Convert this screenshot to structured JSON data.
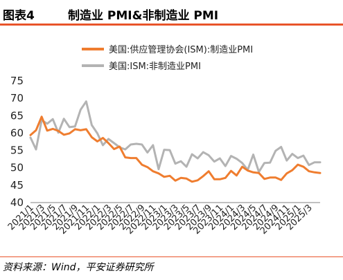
{
  "figure": {
    "label": "图表4",
    "title": "制造业 PMI&非制造业 PMI",
    "source": "资料来源：Wind，平安证券研究所",
    "accent_color": "#e8542a"
  },
  "chart_data": {
    "type": "line",
    "title": "制造业 PMI&非制造业 PMI",
    "xlabel": "",
    "ylabel": "",
    "ylim": [
      40,
      75
    ],
    "yticks": [
      40,
      45,
      50,
      55,
      60,
      65,
      70,
      75
    ],
    "grid": false,
    "legend_position": "top-right",
    "x": [
      "2021/1",
      "2021/2",
      "2021/3",
      "2021/4",
      "2021/5",
      "2021/6",
      "2021/7",
      "2021/8",
      "2021/9",
      "2021/10",
      "2021/11",
      "2021/12",
      "2022/1",
      "2022/2",
      "2022/3",
      "2022/4",
      "2022/5",
      "2022/6",
      "2022/7",
      "2022/8",
      "2022/9",
      "2022/10",
      "2022/11",
      "2022/12",
      "2023/1",
      "2023/2",
      "2023/3",
      "2023/4",
      "2023/5",
      "2023/6",
      "2023/7",
      "2023/8",
      "2023/9",
      "2023/10",
      "2023/11",
      "2023/12",
      "2024/1",
      "2024/2",
      "2024/3",
      "2024/4",
      "2024/5",
      "2024/6",
      "2024/7",
      "2024/8",
      "2024/9",
      "2024/10",
      "2024/11",
      "2024/12",
      "2025/1",
      "2025/2",
      "2025/3",
      "2025/4",
      "2025/5"
    ],
    "xtick_labels": [
      "2021/1",
      "2021/3",
      "2021/5",
      "2021/7",
      "2021/9",
      "2021/11",
      "2022/1",
      "2022/3",
      "2022/5",
      "2022/7",
      "2022/9",
      "2022/11",
      "2023/1",
      "2023/3",
      "2023/5",
      "2023/7",
      "2023/9",
      "2023/11",
      "2024/1",
      "2024/3",
      "2024/5",
      "2024/7",
      "2024/9",
      "2024/11",
      "2025/1",
      "2025/3"
    ],
    "series": [
      {
        "name": "美国:供应管理协会(ISM):制造业PMI",
        "color": "#ef7d2f",
        "values": [
          59.4,
          60.8,
          64.7,
          60.7,
          61.2,
          60.6,
          59.5,
          59.9,
          61.1,
          60.8,
          61.1,
          58.8,
          57.6,
          58.6,
          57.1,
          55.4,
          56.1,
          53.0,
          52.8,
          52.8,
          50.9,
          50.2,
          49.0,
          48.4,
          47.4,
          47.7,
          46.3,
          47.1,
          46.9,
          46.0,
          46.4,
          47.6,
          49.0,
          46.7,
          46.7,
          47.1,
          49.1,
          47.8,
          50.3,
          49.2,
          48.7,
          48.5,
          46.8,
          47.2,
          47.2,
          46.5,
          48.4,
          49.3,
          50.9,
          50.3,
          49.0,
          48.7,
          48.5
        ]
      },
      {
        "name": "美国:ISM:非制造业PMI",
        "color": "#b3b3b3",
        "values": [
          58.7,
          55.3,
          63.7,
          62.7,
          64.0,
          60.1,
          64.1,
          61.7,
          61.9,
          66.7,
          69.1,
          62.3,
          59.9,
          56.5,
          58.3,
          57.1,
          55.9,
          55.3,
          56.7,
          56.9,
          56.7,
          54.4,
          56.5,
          49.6,
          55.2,
          55.1,
          51.2,
          51.9,
          50.3,
          53.9,
          52.7,
          54.5,
          53.6,
          51.8,
          52.7,
          50.5,
          53.4,
          52.6,
          51.4,
          49.4,
          53.8,
          48.8,
          51.4,
          51.5,
          54.9,
          56.0,
          52.1,
          54.0,
          52.8,
          53.5,
          50.8,
          51.6,
          51.6
        ]
      }
    ]
  }
}
